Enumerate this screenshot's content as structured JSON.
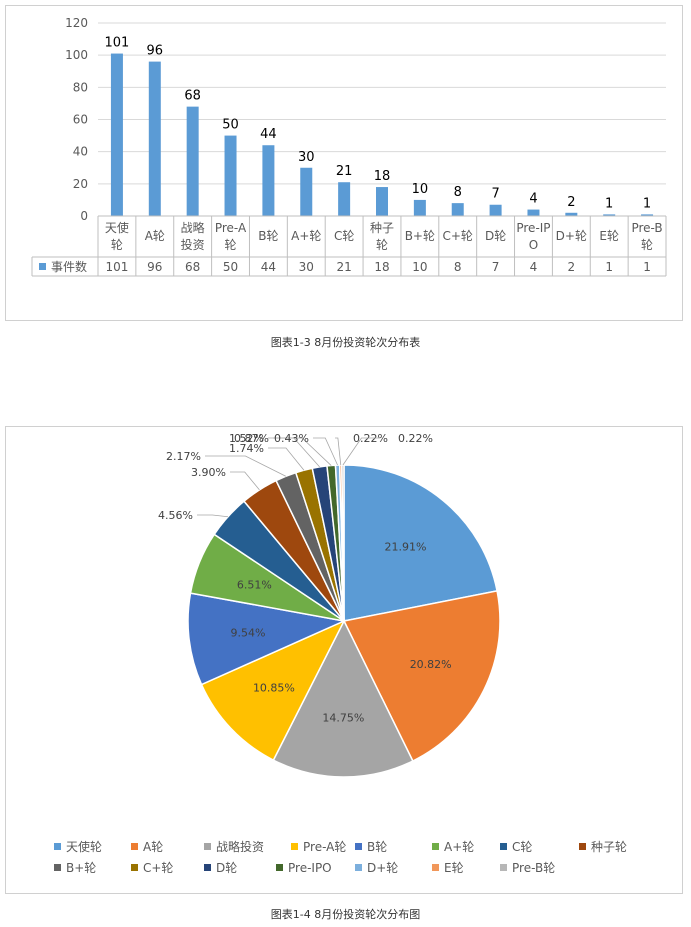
{
  "captions": {
    "bar": "图表1-3 8月份投资轮次分布表",
    "pie": "图表1-4 8月份投资轮次分布图"
  },
  "colors": {
    "bar": "#5b9bd5",
    "grid": "#d9d9d9",
    "pie": [
      "#5b9bd5",
      "#ed7d31",
      "#a5a5a5",
      "#ffc000",
      "#4472c4",
      "#70ad47",
      "#255e91",
      "#9e480e",
      "#636363",
      "#997300",
      "#264478",
      "#43682b",
      "#7cafdd",
      "#f1975a",
      "#b7b7b7"
    ]
  },
  "chart_data": [
    {
      "type": "bar",
      "title": "",
      "xlabel": "",
      "ylabel": "",
      "ylim": [
        0,
        120
      ],
      "yticks": [
        0,
        20,
        40,
        60,
        80,
        100,
        120
      ],
      "grid": true,
      "legend": "data-table",
      "categories": [
        [
          "天使",
          "轮"
        ],
        [
          "A轮"
        ],
        [
          "战略",
          "投资"
        ],
        [
          "Pre-A",
          "轮"
        ],
        [
          "B轮"
        ],
        [
          "A+轮"
        ],
        [
          "C轮"
        ],
        [
          "种子",
          "轮"
        ],
        [
          "B+轮"
        ],
        [
          "C+轮"
        ],
        [
          "D轮"
        ],
        [
          "Pre-IP",
          "O"
        ],
        [
          "D+轮"
        ],
        [
          "E轮"
        ],
        [
          "Pre-B",
          "轮"
        ]
      ],
      "series": [
        {
          "name": "事件数",
          "values": [
            101,
            96,
            68,
            50,
            44,
            30,
            21,
            18,
            10,
            8,
            7,
            4,
            2,
            1,
            1
          ]
        }
      ]
    },
    {
      "type": "pie",
      "title": "",
      "legend": "bottom",
      "labels": [
        "天使轮",
        "A轮",
        "战略投资",
        "Pre-A轮",
        "B轮",
        "A+轮",
        "C轮",
        "种子轮",
        "B+轮",
        "C+轮",
        "D轮",
        "Pre-IPO",
        "D+轮",
        "E轮",
        "Pre-B轮"
      ],
      "values": [
        21.91,
        20.82,
        14.75,
        10.85,
        9.54,
        6.51,
        4.56,
        3.9,
        2.17,
        1.74,
        1.52,
        0.87,
        0.43,
        0.22,
        0.22
      ],
      "value_labels": [
        "21.91%",
        "20.82%",
        "14.75%",
        "10.85%",
        "9.54%",
        "6.51%",
        "4.56%",
        "3.90%",
        "2.17%",
        "1.74%",
        "1.52%",
        "0.87%",
        "0.43%",
        "0.22%",
        "0.22%"
      ]
    }
  ]
}
